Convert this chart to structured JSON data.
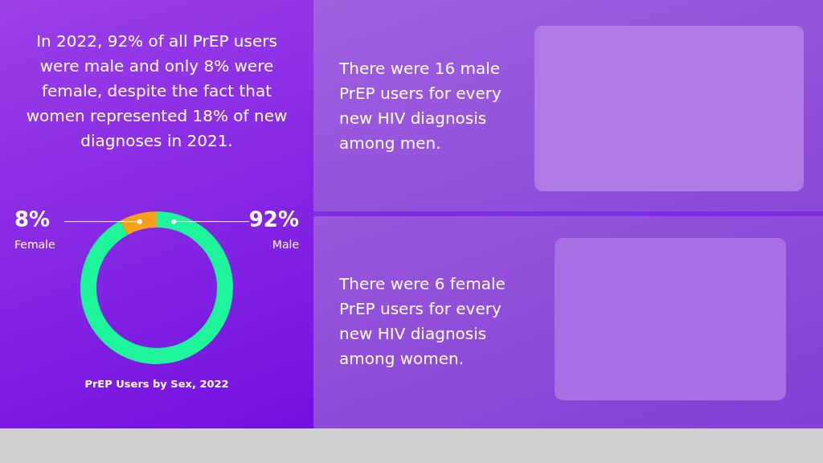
{
  "chart_data": {
    "type": "donut",
    "title": "PrEP Users by Sex, 2022",
    "categories": [
      "Female",
      "Male"
    ],
    "values": [
      8,
      92
    ],
    "colors": [
      "#f7a11a",
      "#1ef59a"
    ],
    "value_labels": [
      "8%",
      "92%"
    ],
    "legend": false,
    "annotations": [
      "In 2022, 92% of all PrEP users were male and only 8% were female, despite the fact that women represented 18% of new diagnoses in 2021.",
      "There were 16 male PrEP users for every new HIV diagnosis among men.",
      "There were 6 female PrEP users for every new HIV diagnosis among women."
    ]
  }
}
